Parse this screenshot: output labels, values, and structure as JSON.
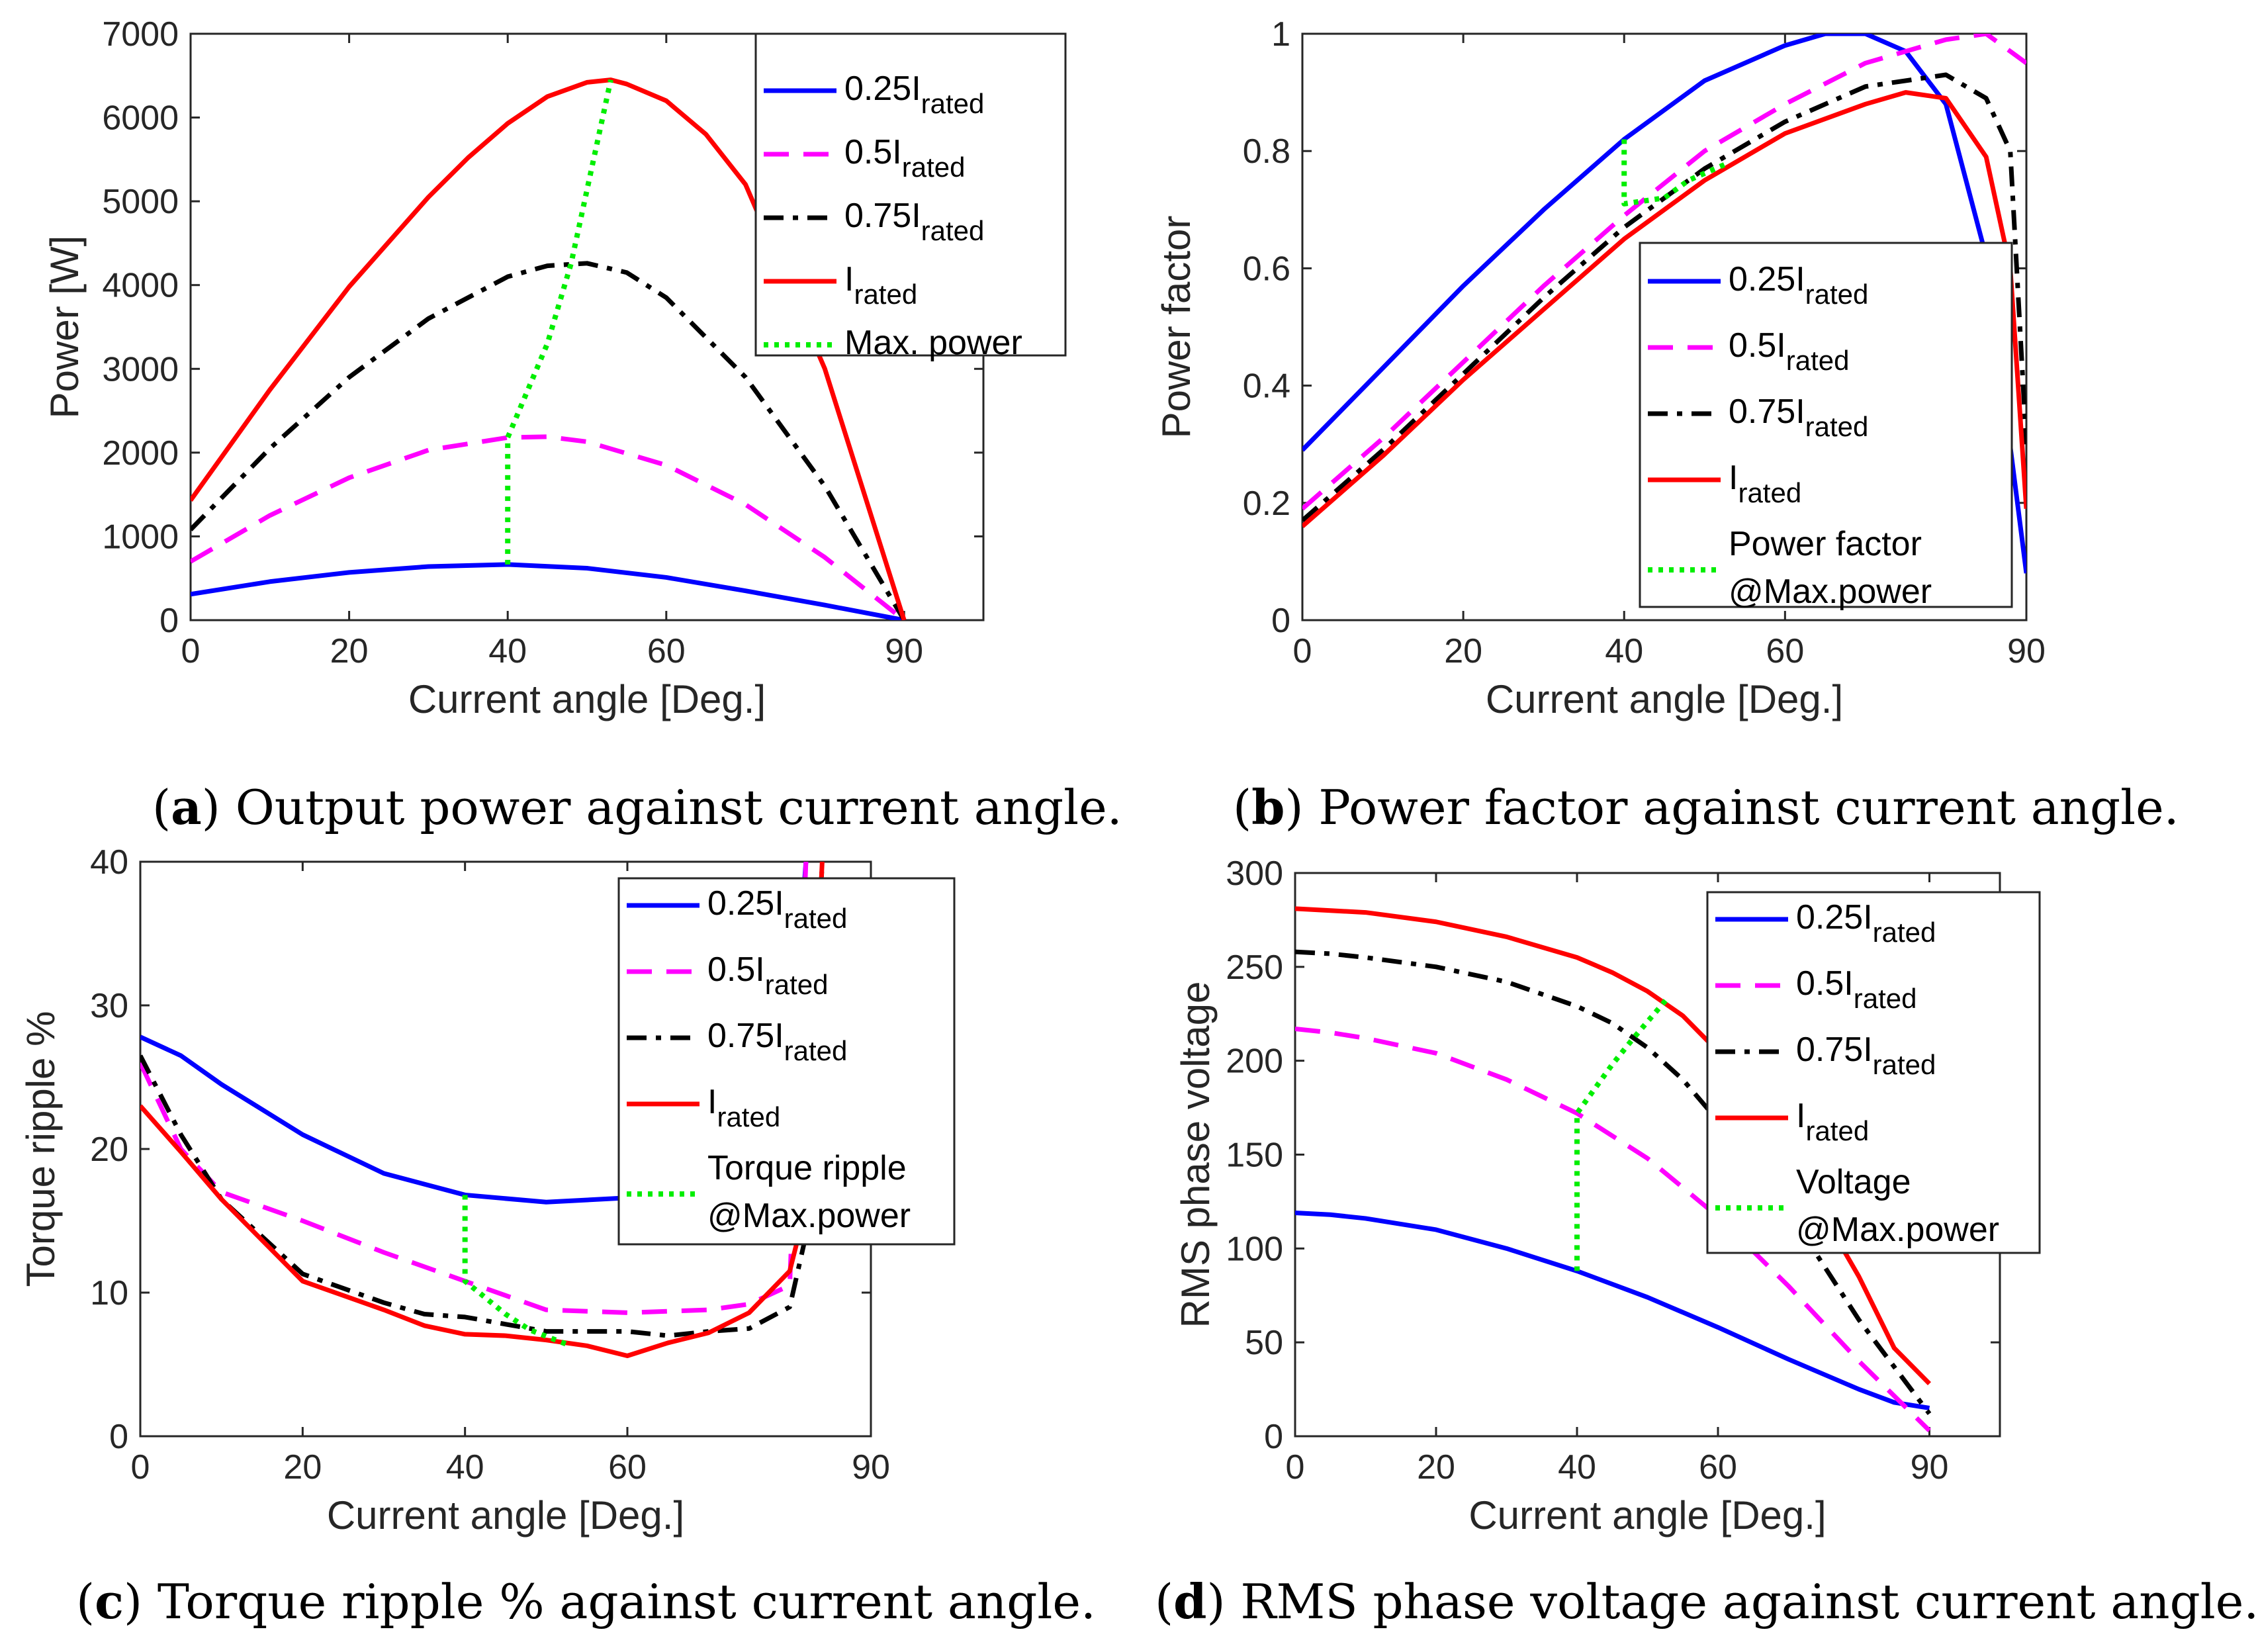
{
  "chart_data": [
    {
      "type": "line",
      "id": "a",
      "caption_letter": "a",
      "caption_text": " Output power against current angle.",
      "xlabel": "Current angle [Deg.]",
      "ylabel": "Power [W]",
      "xlim": [
        0,
        100
      ],
      "ylim": [
        0,
        7000
      ],
      "xticks": [
        0,
        20,
        40,
        60,
        90
      ],
      "yticks": [
        0,
        1000,
        2000,
        3000,
        4000,
        5000,
        6000,
        7000
      ],
      "legend_position": "top-right",
      "series": [
        {
          "name": "0.25I",
          "sub": "rated",
          "color": "#0000ff",
          "dash": "solid",
          "x": [
            0,
            10,
            20,
            30,
            40,
            50,
            60,
            70,
            80,
            90
          ],
          "y": [
            310,
            460,
            570,
            640,
            665,
            620,
            510,
            350,
            180,
            0
          ]
        },
        {
          "name": "0.5I",
          "sub": "rated",
          "color": "#ff00ff",
          "dash": "dashed",
          "x": [
            0,
            10,
            20,
            30,
            40,
            45,
            50,
            60,
            70,
            80,
            90
          ],
          "y": [
            700,
            1250,
            1700,
            2030,
            2180,
            2190,
            2130,
            1850,
            1380,
            750,
            0
          ]
        },
        {
          "name": "0.75I",
          "sub": "rated",
          "color": "#000000",
          "dash": "dashdot",
          "x": [
            0,
            10,
            20,
            30,
            40,
            45,
            50,
            55,
            60,
            70,
            80,
            90
          ],
          "y": [
            1080,
            2050,
            2900,
            3600,
            4100,
            4230,
            4260,
            4150,
            3850,
            2900,
            1600,
            0
          ]
        },
        {
          "name": "I",
          "sub": "rated",
          "color": "#ff0000",
          "dash": "solid",
          "x": [
            0,
            10,
            20,
            30,
            35,
            40,
            45,
            50,
            53,
            55,
            60,
            65,
            70,
            80,
            90
          ],
          "y": [
            1430,
            2750,
            3980,
            5050,
            5520,
            5930,
            6250,
            6420,
            6450,
            6400,
            6200,
            5800,
            5200,
            3000,
            0
          ]
        },
        {
          "name": "Max. power",
          "sub": "",
          "color": "#00ee00",
          "dash": "dotted",
          "x": [
            40,
            40,
            45,
            48,
            53
          ],
          "y": [
            665,
            2180,
            3300,
            4260,
            6450
          ]
        }
      ]
    },
    {
      "type": "line",
      "id": "b",
      "caption_letter": "b",
      "caption_text": " Power factor against current angle.",
      "xlabel": "Current angle [Deg.]",
      "ylabel": "Power factor",
      "xlim": [
        0,
        90
      ],
      "ylim": [
        0,
        1
      ],
      "xticks": [
        0,
        20,
        40,
        60,
        90
      ],
      "yticks": [
        0,
        0.2,
        0.4,
        0.6,
        0.8,
        1
      ],
      "ytick_labels": [
        "0",
        "0.2",
        "0.4",
        "0.6",
        "0.8",
        "1"
      ],
      "legend_position": "bottom-right",
      "series": [
        {
          "name": "0.25I",
          "sub": "rated",
          "color": "#0000ff",
          "dash": "solid",
          "x": [
            0,
            10,
            20,
            30,
            40,
            50,
            60,
            65,
            70,
            75,
            80,
            85,
            90
          ],
          "y": [
            0.29,
            0.43,
            0.57,
            0.7,
            0.82,
            0.92,
            0.98,
            1.0,
            1.0,
            0.97,
            0.88,
            0.62,
            0.08
          ]
        },
        {
          "name": "0.5I",
          "sub": "rated",
          "color": "#ff00ff",
          "dash": "dashed",
          "x": [
            0,
            10,
            20,
            30,
            40,
            50,
            60,
            70,
            80,
            85,
            90
          ],
          "y": [
            0.19,
            0.31,
            0.44,
            0.57,
            0.69,
            0.8,
            0.88,
            0.95,
            0.99,
            1.0,
            0.95
          ]
        },
        {
          "name": "0.75I",
          "sub": "rated",
          "color": "#000000",
          "dash": "dashdot",
          "x": [
            0,
            10,
            20,
            30,
            40,
            50,
            60,
            70,
            80,
            85,
            88,
            90
          ],
          "y": [
            0.17,
            0.29,
            0.42,
            0.55,
            0.67,
            0.77,
            0.85,
            0.91,
            0.93,
            0.89,
            0.8,
            0.3
          ]
        },
        {
          "name": "I",
          "sub": "rated",
          "color": "#ff0000",
          "dash": "solid",
          "x": [
            0,
            10,
            20,
            30,
            40,
            50,
            60,
            70,
            75,
            80,
            85,
            88,
            90
          ],
          "y": [
            0.16,
            0.28,
            0.41,
            0.53,
            0.65,
            0.75,
            0.83,
            0.88,
            0.9,
            0.89,
            0.79,
            0.6,
            0.19
          ]
        },
        {
          "name": "Power factor",
          "name2": "@Max.power",
          "sub": "",
          "color": "#00ee00",
          "dash": "dotted",
          "x": [
            40,
            40,
            45,
            48,
            53
          ],
          "y": [
            0.82,
            0.71,
            0.72,
            0.75,
            0.78
          ]
        }
      ]
    },
    {
      "type": "line",
      "id": "c",
      "caption_letter": "c",
      "caption_text": " Torque ripple % against current angle.",
      "xlabel": "Current angle [Deg.]",
      "ylabel": "Torque ripple %",
      "xlim": [
        0,
        90
      ],
      "ylim": [
        0,
        40
      ],
      "xticks": [
        0,
        20,
        40,
        60,
        90
      ],
      "yticks": [
        0,
        10,
        20,
        30,
        40
      ],
      "legend_position": "top-right",
      "series": [
        {
          "name": "0.25I",
          "sub": "rated",
          "color": "#0000ff",
          "dash": "solid",
          "x": [
            0,
            5,
            10,
            20,
            30,
            40,
            50,
            60,
            70,
            75,
            80,
            82
          ],
          "y": [
            27.8,
            26.5,
            24.5,
            21.0,
            18.3,
            16.8,
            16.3,
            16.6,
            17.5,
            19.0,
            25.0,
            40
          ]
        },
        {
          "name": "0.5I",
          "sub": "rated",
          "color": "#ff00ff",
          "dash": "dashed",
          "x": [
            0,
            5,
            10,
            20,
            30,
            40,
            50,
            60,
            70,
            75,
            80,
            82
          ],
          "y": [
            26.0,
            20.0,
            17.0,
            15.0,
            12.8,
            10.8,
            8.8,
            8.6,
            8.8,
            9.2,
            10.5,
            40
          ]
        },
        {
          "name": "0.75I",
          "sub": "rated",
          "color": "#000000",
          "dash": "dashdot",
          "x": [
            0,
            5,
            10,
            20,
            30,
            35,
            40,
            50,
            60,
            65,
            70,
            75,
            80,
            82,
            84
          ],
          "y": [
            26.5,
            21.0,
            16.5,
            11.3,
            9.3,
            8.5,
            8.3,
            7.3,
            7.3,
            7.0,
            7.3,
            7.5,
            9.0,
            14.0,
            40
          ]
        },
        {
          "name": "I",
          "sub": "rated",
          "color": "#ff0000",
          "dash": "solid",
          "x": [
            0,
            5,
            10,
            20,
            30,
            35,
            40,
            45,
            50,
            55,
            60,
            65,
            70,
            75,
            80,
            82,
            84
          ],
          "y": [
            23.0,
            19.8,
            16.5,
            10.8,
            8.8,
            7.7,
            7.1,
            7.0,
            6.7,
            6.3,
            5.6,
            6.5,
            7.2,
            8.6,
            11.5,
            16.0,
            40
          ]
        },
        {
          "name": "Torque ripple",
          "name2": "@Max.power",
          "sub": "",
          "color": "#00ee00",
          "dash": "dotted",
          "x": [
            40,
            40,
            45,
            48,
            53
          ],
          "y": [
            16.8,
            10.8,
            8.5,
            7.4,
            6.3
          ]
        }
      ]
    },
    {
      "type": "line",
      "id": "d",
      "caption_letter": "d",
      "caption_text": " RMS phase voltage against current angle.",
      "xlabel": "Current angle [Deg.]",
      "ylabel": "RMS phase voltage",
      "xlim": [
        0,
        100
      ],
      "ylim": [
        0,
        300
      ],
      "xticks": [
        0,
        20,
        40,
        60,
        90
      ],
      "yticks": [
        0,
        50,
        100,
        150,
        200,
        250,
        300
      ],
      "legend_position": "top-right",
      "series": [
        {
          "name": "0.25I",
          "sub": "rated",
          "color": "#0000ff",
          "dash": "solid",
          "x": [
            0,
            5,
            10,
            20,
            30,
            40,
            50,
            60,
            70,
            80,
            85,
            90
          ],
          "y": [
            119,
            118,
            116,
            110,
            100,
            88,
            74,
            58,
            41,
            25,
            18,
            15
          ]
        },
        {
          "name": "0.5I",
          "sub": "rated",
          "color": "#ff00ff",
          "dash": "dashed",
          "x": [
            0,
            5,
            10,
            20,
            30,
            40,
            50,
            60,
            70,
            80,
            90
          ],
          "y": [
            217,
            215,
            212,
            204,
            190,
            172,
            148,
            117,
            80,
            40,
            3
          ]
        },
        {
          "name": "0.75I",
          "sub": "rated",
          "color": "#000000",
          "dash": "dashdot",
          "x": [
            0,
            5,
            10,
            20,
            30,
            40,
            45,
            50,
            55,
            60,
            70,
            80,
            90
          ],
          "y": [
            258,
            257,
            255,
            250,
            242,
            229,
            220,
            207,
            190,
            168,
            120,
            62,
            12
          ]
        },
        {
          "name": "I",
          "sub": "rated",
          "color": "#ff0000",
          "dash": "solid",
          "x": [
            0,
            5,
            10,
            20,
            30,
            40,
            45,
            50,
            55,
            60,
            70,
            80,
            85,
            90
          ],
          "y": [
            281,
            280,
            279,
            274,
            266,
            255,
            247,
            237,
            224,
            205,
            150,
            85,
            47,
            28
          ]
        },
        {
          "name": "Voltage",
          "name2": "@Max.power",
          "sub": "",
          "color": "#00ee00",
          "dash": "dotted",
          "x": [
            40,
            40,
            45,
            48,
            53
          ],
          "y": [
            88,
            172,
            198,
            212,
            234
          ]
        }
      ]
    }
  ]
}
